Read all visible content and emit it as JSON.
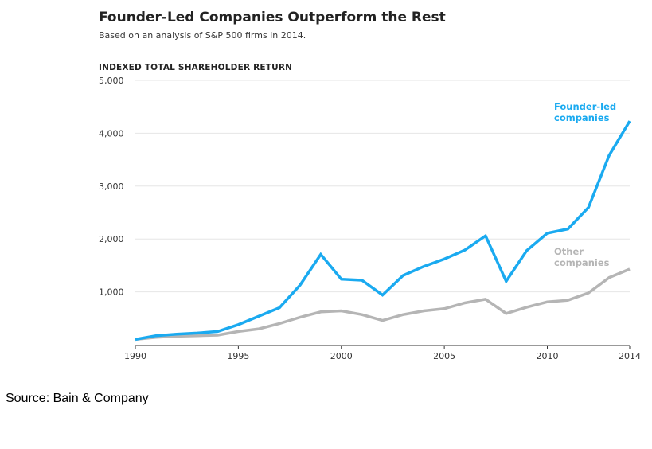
{
  "chart_data": {
    "type": "line",
    "title": "Founder-Led Companies Outperform the Rest",
    "subtitle": "Based on an analysis of S&P 500 firms in 2014.",
    "ylabel": "INDEXED TOTAL SHAREHOLDER RETURN",
    "xlabel": "",
    "xlim": [
      1990,
      2014
    ],
    "ylim": [
      0,
      5000
    ],
    "x_ticks": [
      1990,
      1995,
      2000,
      2005,
      2010,
      2014
    ],
    "y_ticks": [
      {
        "value": 1000,
        "label": "1,000"
      },
      {
        "value": 2000,
        "label": "2,000"
      },
      {
        "value": 3000,
        "label": "3,000"
      },
      {
        "value": 4000,
        "label": "4,000"
      },
      {
        "value": 5000,
        "label": "5,000"
      }
    ],
    "grid": "horizontal",
    "x": [
      1990,
      1991,
      1992,
      1993,
      1994,
      1995,
      1996,
      1997,
      1998,
      1999,
      2000,
      2001,
      2002,
      2003,
      2004,
      2005,
      2006,
      2007,
      2008,
      2009,
      2010,
      2011,
      2012,
      2013,
      2014
    ],
    "series": [
      {
        "name_lines": [
          "Founder-led",
          "companies"
        ],
        "color": "#1aaaf0",
        "values": [
          100,
          170,
          200,
          220,
          250,
          380,
          540,
          700,
          1130,
          1710,
          1240,
          1220,
          940,
          1310,
          1480,
          1620,
          1790,
          2060,
          1200,
          1780,
          2110,
          2190,
          2600,
          3580,
          4230
        ]
      },
      {
        "name_lines": [
          "Other",
          "companies"
        ],
        "color": "#b5b5b5",
        "values": [
          100,
          140,
          160,
          170,
          180,
          250,
          300,
          400,
          520,
          620,
          640,
          570,
          460,
          570,
          640,
          680,
          790,
          860,
          590,
          710,
          810,
          840,
          980,
          1270,
          1430
        ]
      }
    ]
  },
  "source": "Source: Bain & Company"
}
